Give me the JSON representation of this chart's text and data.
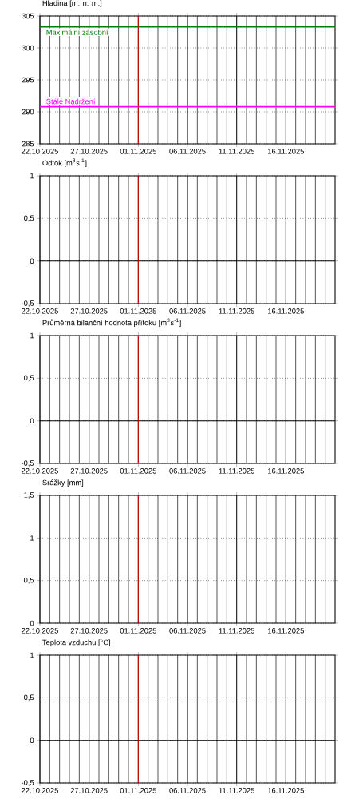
{
  "chart_data": [
    {
      "type": "line",
      "title": "Hladina [m. n. m.]",
      "xlim": [
        "2025-10-22",
        "2025-11-21"
      ],
      "xticks": [
        {
          "value": "2025-10-22",
          "label": "22.10.2025"
        },
        {
          "value": "2025-10-27",
          "label": "27.10.2025"
        },
        {
          "value": "2025-11-01",
          "label": "01.11.2025"
        },
        {
          "value": "2025-11-06",
          "label": "06.11.2025"
        },
        {
          "value": "2025-11-11",
          "label": "11.11.2025"
        },
        {
          "value": "2025-11-16",
          "label": "16.11.2025"
        }
      ],
      "ylim": [
        285,
        305
      ],
      "yticks": [
        285,
        290,
        295,
        300,
        305
      ],
      "grid": true,
      "ref_lines": [
        {
          "axis": "y",
          "value": 303.3,
          "label": "Maximální zásobní",
          "color": "#008000"
        },
        {
          "axis": "y",
          "value": 290.8,
          "label": "Stálé Nadržení",
          "color": "#ff00ff"
        },
        {
          "axis": "x",
          "value": "2025-11-01",
          "color": "#ff0000"
        }
      ]
    },
    {
      "type": "line",
      "title": "Odtok [m$^{3}$s$^{-1}$]",
      "xlim": [
        "2025-10-22",
        "2025-11-21"
      ],
      "xticks": [
        {
          "value": "2025-10-22",
          "label": "22.10.2025"
        },
        {
          "value": "2025-10-27",
          "label": "27.10.2025"
        },
        {
          "value": "2025-11-01",
          "label": "01.11.2025"
        },
        {
          "value": "2025-11-06",
          "label": "06.11.2025"
        },
        {
          "value": "2025-11-11",
          "label": "11.11.2025"
        },
        {
          "value": "2025-11-16",
          "label": "16.11.2025"
        }
      ],
      "ylim": [
        -0.5,
        1
      ],
      "yticks": [
        {
          "value": -0.5,
          "label": "-0,5"
        },
        0,
        {
          "value": 0.5,
          "label": "0,5"
        },
        1
      ],
      "grid": true,
      "ref_lines": [
        {
          "axis": "y",
          "value": 0,
          "color": "#000000"
        },
        {
          "axis": "x",
          "value": "2025-11-01",
          "color": "#ff0000"
        }
      ]
    },
    {
      "type": "line",
      "title": "Průměrná bilanční hodnota přítoku [m$^{3}$s$^{-1}$]",
      "xlim": [
        "2025-10-22",
        "2025-11-21"
      ],
      "xticks": [
        {
          "value": "2025-10-22",
          "label": "22.10.2025"
        },
        {
          "value": "2025-10-27",
          "label": "27.10.2025"
        },
        {
          "value": "2025-11-01",
          "label": "01.11.2025"
        },
        {
          "value": "2025-11-06",
          "label": "06.11.2025"
        },
        {
          "value": "2025-11-11",
          "label": "11.11.2025"
        },
        {
          "value": "2025-11-16",
          "label": "16.11.2025"
        }
      ],
      "ylim": [
        -0.5,
        1
      ],
      "yticks": [
        {
          "value": -0.5,
          "label": "-0,5"
        },
        0,
        {
          "value": 0.5,
          "label": "0,5"
        },
        1
      ],
      "grid": true,
      "ref_lines": [
        {
          "axis": "y",
          "value": 0,
          "color": "#000000"
        },
        {
          "axis": "x",
          "value": "2025-11-01",
          "color": "#ff0000"
        }
      ]
    },
    {
      "type": "line",
      "title": "Srážky [mm]",
      "xlim": [
        "2025-10-22",
        "2025-11-21"
      ],
      "xticks": [
        {
          "value": "2025-10-22",
          "label": "22.10.2025"
        },
        {
          "value": "2025-10-27",
          "label": "27.10.2025"
        },
        {
          "value": "2025-11-01",
          "label": "01.11.2025"
        },
        {
          "value": "2025-11-06",
          "label": "06.11.2025"
        },
        {
          "value": "2025-11-11",
          "label": "11.11.2025"
        },
        {
          "value": "2025-11-16",
          "label": "16.11.2025"
        }
      ],
      "ylim": [
        0,
        1.5
      ],
      "yticks": [
        0,
        {
          "value": 0.5,
          "label": "0,5"
        },
        1,
        {
          "value": 1.5,
          "label": "1,5"
        }
      ],
      "grid": true,
      "ref_lines": [
        {
          "axis": "x",
          "value": "2025-11-01",
          "color": "#ff0000"
        }
      ]
    },
    {
      "type": "line",
      "title": "Teplota vzduchu [°C]",
      "xlim": [
        "2025-10-22",
        "2025-11-21"
      ],
      "xticks": [
        {
          "value": "2025-10-22",
          "label": "22.10.2025"
        },
        {
          "value": "2025-10-27",
          "label": "27.10.2025"
        },
        {
          "value": "2025-11-01",
          "label": "01.11.2025"
        },
        {
          "value": "2025-11-06",
          "label": "06.11.2025"
        },
        {
          "value": "2025-11-11",
          "label": "11.11.2025"
        },
        {
          "value": "2025-11-16",
          "label": "16.11.2025"
        }
      ],
      "ylim": [
        -0.5,
        1
      ],
      "yticks": [
        {
          "value": -0.5,
          "label": "-0,5"
        },
        0,
        {
          "value": 0.5,
          "label": "0,5"
        },
        1
      ],
      "grid": true,
      "ref_lines": [
        {
          "axis": "y",
          "value": 0,
          "color": "#000000"
        },
        {
          "axis": "x",
          "value": "2025-11-01",
          "color": "#ff0000"
        }
      ]
    }
  ]
}
